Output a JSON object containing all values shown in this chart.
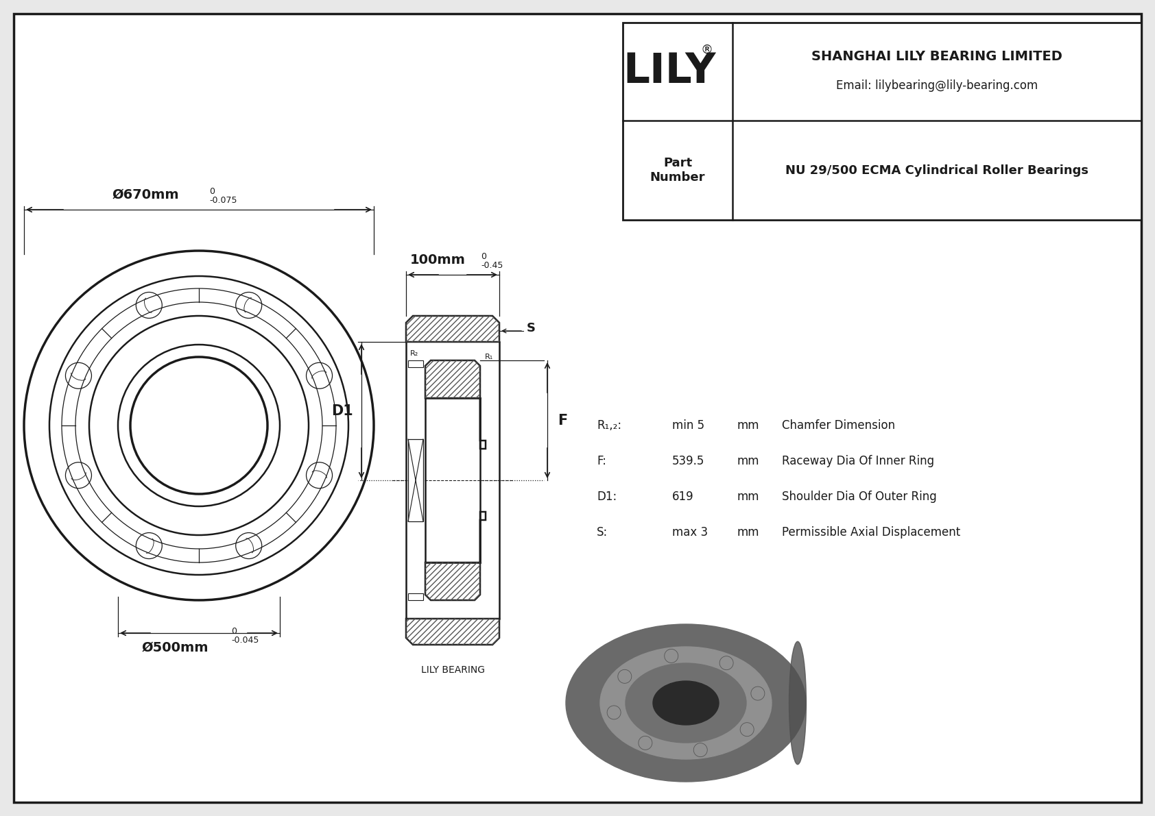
{
  "bg_color": "#e8e8e8",
  "line_color": "#1a1a1a",
  "white": "#ffffff",
  "title_company": "SHANGHAI LILY BEARING LIMITED",
  "title_email": "Email: lilybearing@lily-bearing.com",
  "part_label": "Part\nNumber",
  "part_number": "NU 29/500 ECMA Cylindrical Roller Bearings",
  "lily_text": "LILY",
  "specs": [
    [
      "R₁,₂:",
      "min 5",
      "mm",
      "Chamfer Dimension"
    ],
    [
      "F:",
      "539.5",
      "mm",
      "Raceway Dia Of Inner Ring"
    ],
    [
      "D1:",
      "619",
      "mm",
      "Shoulder Dia Of Outer Ring"
    ],
    [
      "S:",
      "max 3",
      "mm",
      "Permissible Axial Displacement"
    ]
  ],
  "dim_outer": "Ø670mm",
  "dim_outer_tol_top": "0",
  "dim_outer_tol_bot": "-0.075",
  "dim_inner": "Ø500mm",
  "dim_inner_tol_top": "0",
  "dim_inner_tol_bot": "-0.045",
  "dim_width": "100mm",
  "dim_width_tol_top": "0",
  "dim_width_tol_bot": "-0.45",
  "label_D1": "D1",
  "label_F": "F",
  "label_S": "S",
  "label_R1": "R₁",
  "label_R2": "R₂",
  "lily_bearing_label": "LILY BEARING"
}
